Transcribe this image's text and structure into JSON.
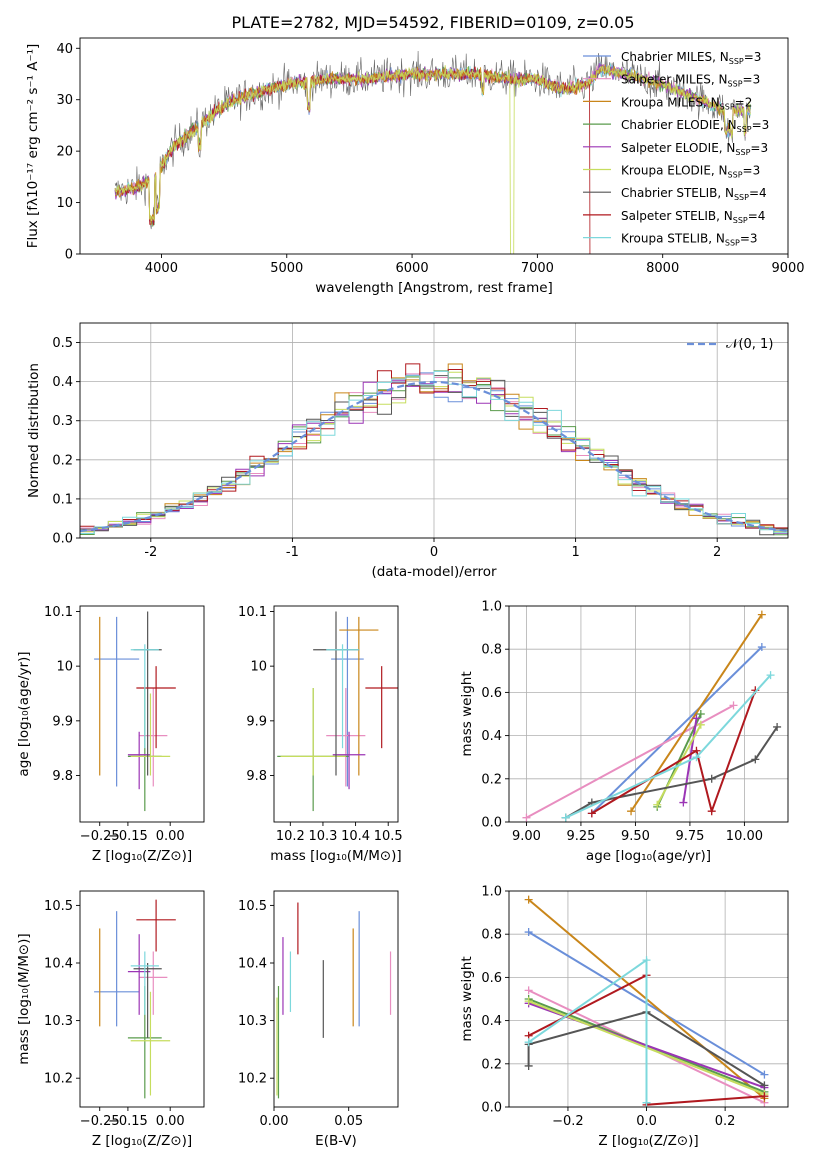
{
  "title": "PLATE=2782, MJD=54592, FIBERID=0109, z=0.05",
  "models": [
    {
      "label": "Chabrier MILES, N",
      "nssp": "=3",
      "color": "#6a8fd9"
    },
    {
      "label": "Salpeter MILES, N",
      "nssp": "=3",
      "color": "#e88ec0"
    },
    {
      "label": "Kroupa MILES, N",
      "nssp": "=2",
      "color": "#c9861a"
    },
    {
      "label": "Chabrier ELODIE, N",
      "nssp": "=3",
      "color": "#5a9b4c"
    },
    {
      "label": "Salpeter ELODIE, N",
      "nssp": "=3",
      "color": "#9b35b5"
    },
    {
      "label": "Kroupa ELODIE, N",
      "nssp": "=3",
      "color": "#c6dd5e"
    },
    {
      "label": "Chabrier STELIB, N",
      "nssp": "=4",
      "color": "#555555"
    },
    {
      "label": "Salpeter STELIB, N",
      "nssp": "=4",
      "color": "#b0191f"
    },
    {
      "label": "Kroupa STELIB, N",
      "nssp": "=3",
      "color": "#7dd8dc"
    }
  ],
  "ssp_sub": "SSP",
  "gaussian_label": "𝒩(0, 1)",
  "chart_data": [
    {
      "id": "spectrum",
      "type": "line",
      "xlabel": "wavelength [Angstrom, rest frame]",
      "ylabel": "Flux [fλ10⁻¹⁷ erg cm⁻² s⁻¹ A⁻¹]",
      "xlim": [
        3350,
        9000
      ],
      "ylim": [
        0,
        42
      ],
      "xticks": [
        4000,
        5000,
        6000,
        7000,
        8000,
        9000
      ],
      "yticks": [
        0,
        10,
        20,
        30,
        40
      ],
      "continuum": [
        [
          3630,
          12
        ],
        [
          3800,
          13
        ],
        [
          3950,
          15
        ],
        [
          4100,
          21
        ],
        [
          4300,
          25
        ],
        [
          4500,
          29
        ],
        [
          4700,
          31
        ],
        [
          5000,
          33
        ],
        [
          5300,
          34
        ],
        [
          5600,
          34
        ],
        [
          6000,
          35
        ],
        [
          6300,
          35
        ],
        [
          6500,
          35
        ],
        [
          6800,
          34
        ],
        [
          7000,
          34
        ],
        [
          7200,
          32
        ],
        [
          7400,
          33
        ],
        [
          7500,
          36
        ],
        [
          7700,
          35
        ],
        [
          8000,
          33
        ],
        [
          8300,
          30
        ],
        [
          8500,
          28
        ],
        [
          8700,
          28
        ]
      ]
    },
    {
      "id": "residuals",
      "type": "histogram",
      "xlabel": "(data-model)/error",
      "ylabel": "Normed distribution",
      "xlim": [
        -2.5,
        2.5
      ],
      "ylim": [
        0,
        0.55
      ],
      "xticks": [
        -2,
        -1,
        0,
        1,
        2
      ],
      "yticks": [
        0.0,
        0.1,
        0.2,
        0.3,
        0.4,
        0.5
      ],
      "bin_width": 0.1,
      "grid": true,
      "legend": "top-right"
    },
    {
      "id": "age_vs_Z",
      "type": "errorbar",
      "xlabel": "Z [log₁₀(Z/Z⊙)]",
      "ylabel": "age  [log₁₀(age/yr)]",
      "xlim": [
        -0.32,
        0.12
      ],
      "ylim": [
        9.715,
        10.11
      ],
      "xticks": [
        -0.25,
        -0.15,
        0.0
      ],
      "xticklabels": [
        "−0.25",
        "−0.15",
        "0.00"
      ],
      "yticks": [
        9.8,
        9.9,
        10.0,
        10.1
      ],
      "points": [
        {
          "x": -0.19,
          "xerr": 0.08,
          "y": 10.013,
          "ylo": 9.78,
          "yhi": 10.09,
          "c": 0
        },
        {
          "x": -0.06,
          "xerr": 0.05,
          "y": 9.873,
          "ylo": 9.78,
          "yhi": 9.96,
          "c": 1
        },
        {
          "x": -0.25,
          "xerr": 0.0,
          "y": 10.066,
          "ylo": 9.8,
          "yhi": 10.09,
          "c": 2
        },
        {
          "x": -0.09,
          "xerr": 0.06,
          "y": 9.835,
          "ylo": 9.735,
          "yhi": 9.96,
          "c": 3
        },
        {
          "x": -0.11,
          "xerr": 0.04,
          "y": 9.838,
          "ylo": 9.775,
          "yhi": 9.88,
          "c": 4
        },
        {
          "x": -0.07,
          "xerr": 0.07,
          "y": 9.835,
          "ylo": 9.8,
          "yhi": 9.95,
          "c": 5
        },
        {
          "x": -0.08,
          "xerr": 0.05,
          "y": 10.03,
          "ylo": 9.8,
          "yhi": 10.1,
          "c": 6
        },
        {
          "x": -0.05,
          "xerr": 0.07,
          "y": 9.96,
          "ylo": 9.85,
          "yhi": 10.0,
          "c": 7
        },
        {
          "x": -0.09,
          "xerr": 0.05,
          "y": 10.03,
          "ylo": 9.85,
          "yhi": 10.04,
          "c": 8
        }
      ]
    },
    {
      "id": "age_vs_mass",
      "type": "errorbar",
      "xlabel": "mass [log₁₀(M/M⊙)]",
      "xlim": [
        10.15,
        10.53
      ],
      "ylim": [
        9.715,
        10.11
      ],
      "xticks": [
        10.2,
        10.3,
        10.4,
        10.5
      ],
      "yticks": [
        9.8,
        9.9,
        10.0,
        10.1
      ],
      "points": [
        {
          "x": 10.375,
          "xerr": 0.05,
          "y": 10.013,
          "ylo": 9.78,
          "yhi": 10.09,
          "c": 0
        },
        {
          "x": 10.37,
          "xerr": 0.06,
          "y": 9.873,
          "ylo": 9.78,
          "yhi": 9.96,
          "c": 1
        },
        {
          "x": 10.41,
          "xerr": 0.06,
          "y": 10.066,
          "ylo": 9.8,
          "yhi": 10.09,
          "c": 2
        },
        {
          "x": 10.27,
          "xerr": 0.11,
          "y": 9.835,
          "ylo": 9.735,
          "yhi": 9.96,
          "c": 3
        },
        {
          "x": 10.38,
          "xerr": 0.05,
          "y": 9.838,
          "ylo": 9.775,
          "yhi": 9.88,
          "c": 4
        },
        {
          "x": 10.27,
          "xerr": 0.1,
          "y": 9.835,
          "ylo": 9.8,
          "yhi": 9.96,
          "c": 5
        },
        {
          "x": 10.34,
          "xerr": 0.07,
          "y": 10.03,
          "ylo": 9.8,
          "yhi": 10.1,
          "c": 6
        },
        {
          "x": 10.48,
          "xerr": 0.05,
          "y": 9.96,
          "ylo": 9.85,
          "yhi": 10.0,
          "c": 7
        },
        {
          "x": 10.36,
          "xerr": 0.05,
          "y": 10.03,
          "ylo": 9.85,
          "yhi": 10.04,
          "c": 8
        }
      ]
    },
    {
      "id": "weight_vs_age",
      "type": "line",
      "xlabel": "age  [log₁₀(age/yr)]",
      "ylabel": "mass weight",
      "xlim": [
        8.92,
        10.2
      ],
      "ylim": [
        0,
        1.0
      ],
      "xticks": [
        9.0,
        9.25,
        9.5,
        9.75,
        10.0
      ],
      "xticklabels": [
        "9.00",
        "9.25",
        "9.50",
        "9.75",
        "10.00"
      ],
      "yticks": [
        0.0,
        0.2,
        0.4,
        0.6,
        0.8,
        1.0
      ],
      "grid": true,
      "series": [
        {
          "c": 0,
          "x": [
            9.3,
            10.08
          ],
          "y": [
            0.04,
            0.81
          ]
        },
        {
          "c": 1,
          "x": [
            9.0,
            9.95
          ],
          "y": [
            0.02,
            0.54
          ]
        },
        {
          "c": 2,
          "x": [
            9.48,
            10.08
          ],
          "y": [
            0.05,
            0.96
          ]
        },
        {
          "c": 3,
          "x": [
            9.6,
            9.8
          ],
          "y": [
            0.07,
            0.5
          ]
        },
        {
          "c": 4,
          "x": [
            9.72,
            9.78
          ],
          "y": [
            0.09,
            0.48
          ]
        },
        {
          "c": 5,
          "x": [
            9.6,
            9.8
          ],
          "y": [
            0.08,
            0.45
          ]
        },
        {
          "c": 6,
          "x": [
            9.18,
            9.3,
            9.85,
            10.05,
            10.15
          ],
          "y": [
            0.02,
            0.09,
            0.2,
            0.29,
            0.44
          ]
        },
        {
          "c": 7,
          "x": [
            9.3,
            9.78,
            9.85,
            10.05
          ],
          "y": [
            0.04,
            0.33,
            0.05,
            0.61
          ]
        },
        {
          "c": 8,
          "x": [
            9.18,
            9.78,
            10.12
          ],
          "y": [
            0.02,
            0.3,
            0.68
          ]
        }
      ]
    },
    {
      "id": "mass_vs_Z",
      "type": "errorbar",
      "xlabel": "Z [log₁₀(Z/Z⊙)]",
      "ylabel": "mass [log₁₀(M/M⊙)]",
      "xlim": [
        -0.32,
        0.12
      ],
      "ylim": [
        10.15,
        10.525
      ],
      "xticks": [
        -0.25,
        -0.15,
        0.0
      ],
      "xticklabels": [
        "−0.25",
        "−0.15",
        "0.00"
      ],
      "yticks": [
        10.2,
        10.3,
        10.4,
        10.5
      ],
      "points": [
        {
          "x": -0.19,
          "xerr": 0.08,
          "y": 10.35,
          "ylo": 10.29,
          "yhi": 10.49,
          "c": 0
        },
        {
          "x": -0.06,
          "xerr": 0.05,
          "y": 10.375,
          "ylo": 10.31,
          "yhi": 10.42,
          "c": 1
        },
        {
          "x": -0.25,
          "xerr": 0.0,
          "y": 10.43,
          "ylo": 10.29,
          "yhi": 10.46,
          "c": 2
        },
        {
          "x": -0.09,
          "xerr": 0.06,
          "y": 10.27,
          "ylo": 10.165,
          "yhi": 10.36,
          "c": 3
        },
        {
          "x": -0.11,
          "xerr": 0.04,
          "y": 10.385,
          "ylo": 10.31,
          "yhi": 10.45,
          "c": 4
        },
        {
          "x": -0.07,
          "xerr": 0.07,
          "y": 10.265,
          "ylo": 10.17,
          "yhi": 10.35,
          "c": 5
        },
        {
          "x": -0.08,
          "xerr": 0.05,
          "y": 10.39,
          "ylo": 10.27,
          "yhi": 10.4,
          "c": 6
        },
        {
          "x": -0.05,
          "xerr": 0.07,
          "y": 10.475,
          "ylo": 10.42,
          "yhi": 10.51,
          "c": 7
        },
        {
          "x": -0.09,
          "xerr": 0.05,
          "y": 10.395,
          "ylo": 10.31,
          "yhi": 10.42,
          "c": 8
        }
      ]
    },
    {
      "id": "mass_vs_EBV",
      "type": "errorbar",
      "xlabel": "E(B-V)",
      "xlim": [
        0.0,
        0.083
      ],
      "ylim": [
        10.15,
        10.525
      ],
      "xticks": [
        0.0,
        0.05
      ],
      "xticklabels": [
        "0.00",
        "0.05"
      ],
      "yticks": [
        10.2,
        10.3,
        10.4,
        10.5
      ],
      "points": [
        {
          "x": 0.057,
          "xerr": 0.0,
          "y": 10.385,
          "ylo": 10.29,
          "yhi": 10.49,
          "c": 0
        },
        {
          "x": 0.078,
          "xerr": 0.0,
          "y": 10.38,
          "ylo": 10.31,
          "yhi": 10.42,
          "c": 1
        },
        {
          "x": 0.053,
          "xerr": 0.0,
          "y": 10.38,
          "ylo": 10.29,
          "yhi": 10.46,
          "c": 2
        },
        {
          "x": 0.003,
          "xerr": 0.0,
          "y": 10.26,
          "ylo": 10.165,
          "yhi": 10.36,
          "c": 3
        },
        {
          "x": 0.006,
          "xerr": 0.0,
          "y": 10.39,
          "ylo": 10.31,
          "yhi": 10.445,
          "c": 4
        },
        {
          "x": 0.002,
          "xerr": 0.0,
          "y": 10.27,
          "ylo": 10.17,
          "yhi": 10.34,
          "c": 5
        },
        {
          "x": 0.033,
          "xerr": 0.0,
          "y": 10.33,
          "ylo": 10.27,
          "yhi": 10.405,
          "c": 6
        },
        {
          "x": 0.016,
          "xerr": 0.0,
          "y": 10.47,
          "ylo": 10.415,
          "yhi": 10.505,
          "c": 7
        },
        {
          "x": 0.011,
          "xerr": 0.0,
          "y": 10.37,
          "ylo": 10.315,
          "yhi": 10.42,
          "c": 8
        }
      ]
    },
    {
      "id": "weight_vs_Z",
      "type": "line",
      "xlabel": "Z [log₁₀(Z/Z⊙)]",
      "ylabel": "mass weight",
      "xlim": [
        -0.35,
        0.36
      ],
      "ylim": [
        0,
        1.0
      ],
      "xticks": [
        -0.2,
        0.0,
        0.2
      ],
      "xticklabels": [
        "−0.2",
        "0.0",
        "0.2"
      ],
      "yticks": [
        0.0,
        0.2,
        0.4,
        0.6,
        0.8,
        1.0
      ],
      "grid": true,
      "series": [
        {
          "c": 0,
          "x": [
            -0.3,
            0.3
          ],
          "y": [
            0.81,
            0.15
          ]
        },
        {
          "c": 1,
          "x": [
            -0.3,
            0.3
          ],
          "y": [
            0.54,
            0.02
          ]
        },
        {
          "c": 2,
          "x": [
            -0.3,
            0.3
          ],
          "y": [
            0.96,
            0.04
          ]
        },
        {
          "c": 3,
          "x": [
            -0.3,
            0.3
          ],
          "y": [
            0.5,
            0.07
          ]
        },
        {
          "c": 4,
          "x": [
            -0.3,
            0.3
          ],
          "y": [
            0.48,
            0.09
          ]
        },
        {
          "c": 5,
          "x": [
            -0.3,
            0.3
          ],
          "y": [
            0.49,
            0.06
          ]
        },
        {
          "c": 6,
          "x": [
            -0.3,
            -0.3,
            0.0,
            0.3
          ],
          "y": [
            0.19,
            0.29,
            0.44,
            0.1
          ]
        },
        {
          "c": 7,
          "x": [
            -0.3,
            0.0,
            0.0,
            0.3
          ],
          "y": [
            0.33,
            0.61,
            0.01,
            0.05
          ]
        },
        {
          "c": 8,
          "x": [
            -0.3,
            0.0,
            0.0
          ],
          "y": [
            0.3,
            0.68,
            0.02
          ]
        }
      ]
    }
  ]
}
